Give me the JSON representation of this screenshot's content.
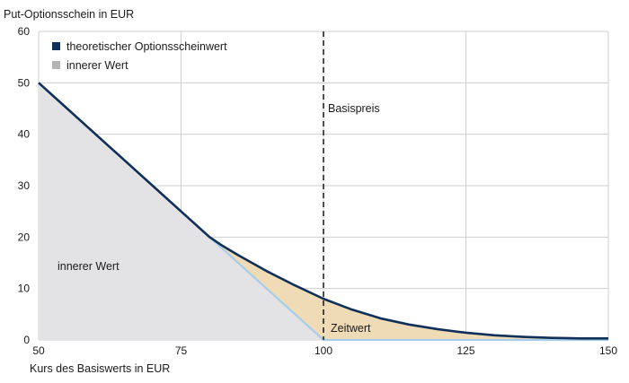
{
  "chart_data": {
    "type": "area",
    "ylabel": "Put-Optionsschein in EUR",
    "xlabel": "Kurs des Basiswerts in EUR",
    "xlim": [
      50,
      150
    ],
    "ylim": [
      0,
      60
    ],
    "x_ticks": [
      "50",
      "75",
      "100",
      "125",
      "150"
    ],
    "y_ticks": [
      "0",
      "10",
      "20",
      "30",
      "40",
      "50",
      "60"
    ],
    "grid": true,
    "legend_position": "top-left",
    "series": [
      {
        "name": "theoretischer Optionsscheinwert",
        "color": "#10305a",
        "x": [
          50,
          55,
          60,
          65,
          70,
          75,
          80,
          82,
          85,
          90,
          95,
          100,
          105,
          110,
          115,
          120,
          125,
          130,
          135,
          140,
          145,
          150
        ],
        "y": [
          50,
          45,
          40,
          35,
          30,
          25,
          20,
          18.5,
          16.5,
          13.4,
          10.6,
          8.0,
          5.9,
          4.2,
          3.0,
          2.1,
          1.4,
          0.9,
          0.6,
          0.4,
          0.3,
          0.3
        ]
      },
      {
        "name": "innerer Wert",
        "color": "#b3b3b3",
        "x": [
          50,
          100,
          150
        ],
        "y": [
          50,
          0,
          0
        ]
      }
    ],
    "annotations": {
      "strike_x": 100,
      "strike_label": "Basispreis",
      "intrinsic_label": "innerer Wert",
      "time_value_label": "Zeitwert"
    },
    "colors": {
      "intrinsic_fill": "#e3e3e6",
      "intrinsic_line": "#a9cde8",
      "time_value_fill": "#efdcb6",
      "grid": "#cfcfcf",
      "strike_line": "#222222"
    }
  }
}
